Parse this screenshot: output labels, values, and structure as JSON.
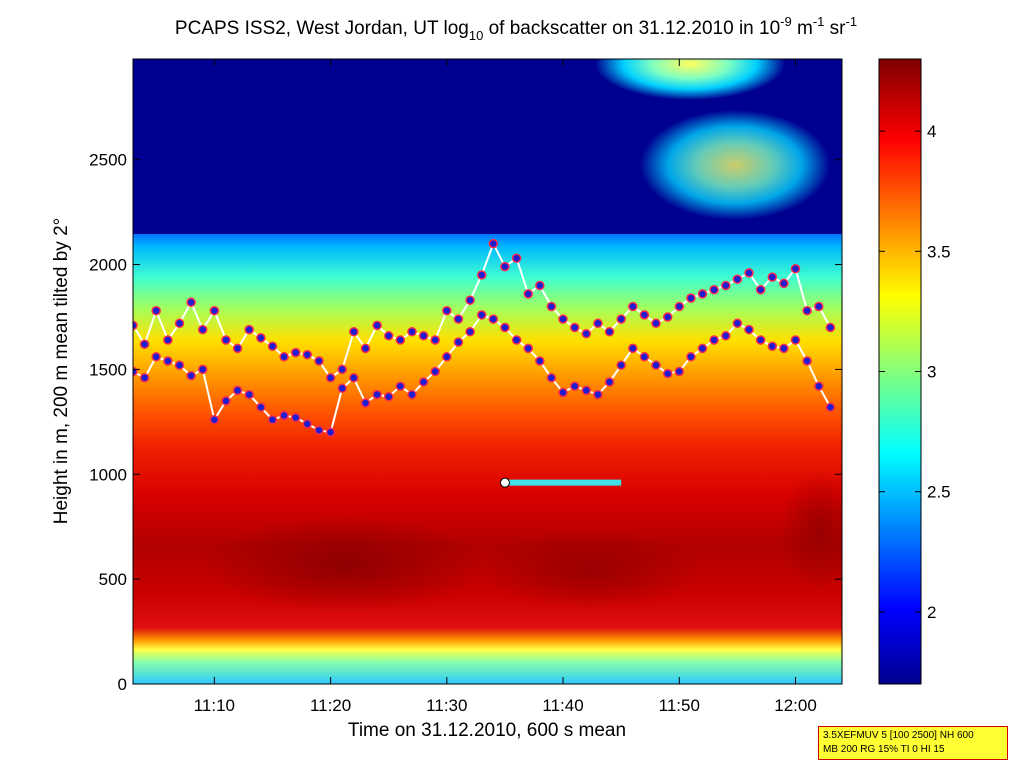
{
  "chart_data": {
    "type": "heatmap",
    "title": {
      "main": "PCAPS ISS2, West Jordan, UT log",
      "sub1": "10",
      "mid": " of backscatter on 31.12.2010 in 10",
      "sup1": "-9",
      "mid2": " m",
      "sup2": "-1",
      "mid3": " sr",
      "sup3": "-1"
    },
    "xlabel": "Time on 31.12.2010, 600 s mean",
    "ylabel": "Height in m, 200 m mean tilted by 2°",
    "xlim": [
      "11:03",
      "12:04"
    ],
    "ylim": [
      0,
      2980
    ],
    "x_ticks": [
      "11:10",
      "11:20",
      "11:30",
      "11:40",
      "11:50",
      "12:00"
    ],
    "y_ticks": [
      0,
      500,
      1000,
      1500,
      2000,
      2500
    ],
    "colorbar": {
      "min": 1.7,
      "max": 4.3,
      "ticks": [
        2,
        2.5,
        3,
        3.5,
        4
      ],
      "tick_labels": [
        "2",
        "2.5",
        "3",
        "3.5",
        "4"
      ]
    },
    "layer_top": {
      "series_name": "",
      "color": "#1e1ed0",
      "edge_color": "#ff2a4a",
      "points": [
        [
          "11:03",
          1710
        ],
        [
          "11:04",
          1620
        ],
        [
          "11:05",
          1780
        ],
        [
          "11:06",
          1640
        ],
        [
          "11:07",
          1720
        ],
        [
          "11:08",
          1820
        ],
        [
          "11:09",
          1690
        ],
        [
          "11:10",
          1780
        ],
        [
          "11:11",
          1640
        ],
        [
          "11:12",
          1600
        ],
        [
          "11:13",
          1690
        ],
        [
          "11:14",
          1650
        ],
        [
          "11:15",
          1610
        ],
        [
          "11:16",
          1560
        ],
        [
          "11:17",
          1580
        ],
        [
          "11:18",
          1570
        ],
        [
          "11:19",
          1540
        ],
        [
          "11:20",
          1460
        ],
        [
          "11:21",
          1500
        ],
        [
          "11:22",
          1680
        ],
        [
          "11:23",
          1600
        ],
        [
          "11:24",
          1710
        ],
        [
          "11:25",
          1660
        ],
        [
          "11:26",
          1640
        ],
        [
          "11:27",
          1680
        ],
        [
          "11:28",
          1660
        ],
        [
          "11:29",
          1640
        ],
        [
          "11:30",
          1780
        ],
        [
          "11:31",
          1740
        ],
        [
          "11:32",
          1830
        ],
        [
          "11:33",
          1950
        ],
        [
          "11:34",
          2100
        ],
        [
          "11:35",
          1990
        ],
        [
          "11:36",
          2030
        ],
        [
          "11:37",
          1860
        ],
        [
          "11:38",
          1900
        ],
        [
          "11:39",
          1800
        ],
        [
          "11:40",
          1740
        ],
        [
          "11:41",
          1700
        ],
        [
          "11:42",
          1670
        ],
        [
          "11:43",
          1720
        ],
        [
          "11:44",
          1680
        ],
        [
          "11:45",
          1740
        ],
        [
          "11:46",
          1800
        ],
        [
          "11:47",
          1760
        ],
        [
          "11:48",
          1720
        ],
        [
          "11:49",
          1750
        ],
        [
          "11:50",
          1800
        ],
        [
          "11:51",
          1840
        ],
        [
          "11:52",
          1860
        ],
        [
          "11:53",
          1880
        ],
        [
          "11:54",
          1900
        ],
        [
          "11:55",
          1930
        ],
        [
          "11:56",
          1960
        ],
        [
          "11:57",
          1880
        ],
        [
          "11:58",
          1940
        ],
        [
          "11:59",
          1910
        ],
        [
          "12:00",
          1980
        ],
        [
          "12:01",
          1780
        ],
        [
          "12:02",
          1800
        ],
        [
          "12:03",
          1700
        ]
      ]
    },
    "layer_bottom": {
      "series_name": "",
      "color": "#1e1ed0",
      "edge_color": "#ff2a4a",
      "points": [
        [
          "11:03",
          1490
        ],
        [
          "11:04",
          1460
        ],
        [
          "11:05",
          1560
        ],
        [
          "11:06",
          1540
        ],
        [
          "11:07",
          1520
        ],
        [
          "11:08",
          1470
        ],
        [
          "11:09",
          1500
        ],
        [
          "11:10",
          1260
        ],
        [
          "11:11",
          1350
        ],
        [
          "11:12",
          1400
        ],
        [
          "11:13",
          1380
        ],
        [
          "11:14",
          1320
        ],
        [
          "11:15",
          1260
        ],
        [
          "11:16",
          1280
        ],
        [
          "11:17",
          1270
        ],
        [
          "11:18",
          1240
        ],
        [
          "11:19",
          1210
        ],
        [
          "11:20",
          1200
        ],
        [
          "11:21",
          1410
        ],
        [
          "11:22",
          1460
        ],
        [
          "11:23",
          1340
        ],
        [
          "11:24",
          1380
        ],
        [
          "11:25",
          1370
        ],
        [
          "11:26",
          1420
        ],
        [
          "11:27",
          1380
        ],
        [
          "11:28",
          1440
        ],
        [
          "11:29",
          1490
        ],
        [
          "11:30",
          1560
        ],
        [
          "11:31",
          1630
        ],
        [
          "11:32",
          1680
        ],
        [
          "11:33",
          1760
        ],
        [
          "11:34",
          1740
        ],
        [
          "11:35",
          1700
        ],
        [
          "11:36",
          1640
        ],
        [
          "11:37",
          1600
        ],
        [
          "11:38",
          1540
        ],
        [
          "11:39",
          1460
        ],
        [
          "11:40",
          1390
        ],
        [
          "11:41",
          1420
        ],
        [
          "11:42",
          1400
        ],
        [
          "11:43",
          1380
        ],
        [
          "11:44",
          1440
        ],
        [
          "11:45",
          1520
        ],
        [
          "11:46",
          1600
        ],
        [
          "11:47",
          1560
        ],
        [
          "11:48",
          1520
        ],
        [
          "11:49",
          1480
        ],
        [
          "11:50",
          1490
        ],
        [
          "11:51",
          1560
        ],
        [
          "11:52",
          1600
        ],
        [
          "11:53",
          1640
        ],
        [
          "11:54",
          1660
        ],
        [
          "11:55",
          1720
        ],
        [
          "11:56",
          1690
        ],
        [
          "11:57",
          1640
        ],
        [
          "11:58",
          1610
        ],
        [
          "11:59",
          1600
        ],
        [
          "12:00",
          1640
        ],
        [
          "12:01",
          1540
        ],
        [
          "12:02",
          1420
        ],
        [
          "12:03",
          1320
        ]
      ]
    },
    "marker_line": {
      "start": [
        "11:35",
        960
      ],
      "end": [
        "11:45",
        960
      ],
      "color": "#40e0e8"
    }
  },
  "info_box": {
    "line1": "3.5XEFMUV 5 [100 2500] NH 600",
    "line2": "MB 200 RG 15% TI 0 HI 15"
  }
}
